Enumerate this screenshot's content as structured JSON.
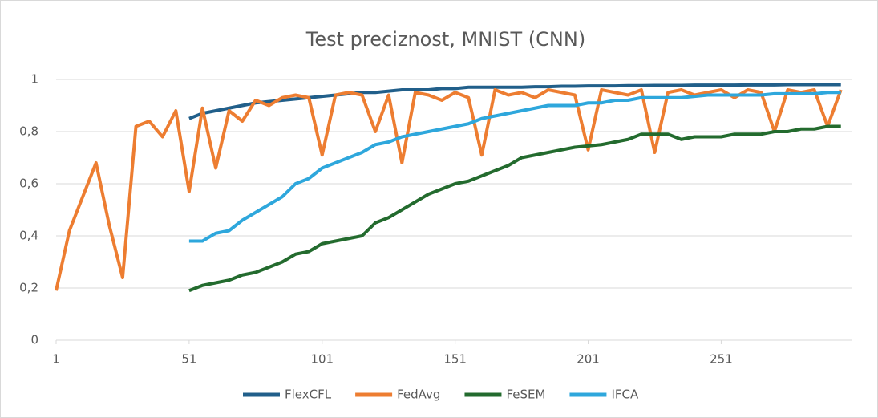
{
  "chart_data": {
    "type": "line",
    "title": "Test preciznost, MNIST (CNN)",
    "x": [
      1,
      6,
      11,
      16,
      21,
      26,
      31,
      36,
      41,
      46,
      51,
      56,
      61,
      66,
      71,
      76,
      81,
      86,
      91,
      96,
      101,
      106,
      111,
      116,
      121,
      126,
      131,
      136,
      141,
      146,
      151,
      156,
      161,
      166,
      171,
      176,
      181,
      186,
      191,
      196,
      201,
      206,
      211,
      216,
      221,
      226,
      231,
      236,
      241,
      246,
      251,
      256,
      261,
      266,
      271,
      276,
      281,
      286,
      291,
      296
    ],
    "series": [
      {
        "name": "FlexCFL",
        "color": "#215f8a",
        "values": [
          null,
          null,
          null,
          null,
          null,
          null,
          null,
          null,
          null,
          null,
          0.85,
          0.87,
          0.88,
          0.89,
          0.9,
          0.91,
          0.915,
          0.92,
          0.925,
          0.93,
          0.935,
          0.94,
          0.945,
          0.95,
          0.95,
          0.955,
          0.96,
          0.96,
          0.96,
          0.965,
          0.965,
          0.97,
          0.97,
          0.97,
          0.97,
          0.97,
          0.972,
          0.972,
          0.974,
          0.974,
          0.975,
          0.975,
          0.975,
          0.976,
          0.976,
          0.977,
          0.977,
          0.977,
          0.978,
          0.978,
          0.978,
          0.978,
          0.979,
          0.979,
          0.979,
          0.98,
          0.98,
          0.98,
          0.98,
          0.98
        ]
      },
      {
        "name": "FedAvg",
        "color": "#ed7d31",
        "values": [
          0.19,
          0.42,
          0.55,
          0.68,
          0.44,
          0.24,
          0.82,
          0.84,
          0.78,
          0.88,
          0.57,
          0.89,
          0.66,
          0.88,
          0.84,
          0.92,
          0.9,
          0.93,
          0.94,
          0.93,
          0.71,
          0.94,
          0.95,
          0.94,
          0.8,
          0.94,
          0.68,
          0.95,
          0.94,
          0.92,
          0.95,
          0.93,
          0.71,
          0.96,
          0.94,
          0.95,
          0.93,
          0.96,
          0.95,
          0.94,
          0.73,
          0.96,
          0.95,
          0.94,
          0.96,
          0.72,
          0.95,
          0.96,
          0.94,
          0.95,
          0.96,
          0.93,
          0.96,
          0.95,
          0.8,
          0.96,
          0.95,
          0.96,
          0.82,
          0.96
        ]
      },
      {
        "name": "FeSEM",
        "color": "#236b2e",
        "values": [
          null,
          null,
          null,
          null,
          null,
          null,
          null,
          null,
          null,
          null,
          0.19,
          0.21,
          0.22,
          0.23,
          0.25,
          0.26,
          0.28,
          0.3,
          0.33,
          0.34,
          0.37,
          0.38,
          0.39,
          0.4,
          0.45,
          0.47,
          0.5,
          0.53,
          0.56,
          0.58,
          0.6,
          0.61,
          0.63,
          0.65,
          0.67,
          0.7,
          0.71,
          0.72,
          0.73,
          0.74,
          0.745,
          0.75,
          0.76,
          0.77,
          0.79,
          0.79,
          0.79,
          0.77,
          0.78,
          0.78,
          0.78,
          0.79,
          0.79,
          0.79,
          0.8,
          0.8,
          0.81,
          0.81,
          0.82,
          0.82
        ]
      },
      {
        "name": "IFCA",
        "color": "#2ea7dc",
        "values": [
          null,
          null,
          null,
          null,
          null,
          null,
          null,
          null,
          null,
          null,
          0.38,
          0.38,
          0.41,
          0.42,
          0.46,
          0.49,
          0.52,
          0.55,
          0.6,
          0.62,
          0.66,
          0.68,
          0.7,
          0.72,
          0.75,
          0.76,
          0.78,
          0.79,
          0.8,
          0.81,
          0.82,
          0.83,
          0.85,
          0.86,
          0.87,
          0.88,
          0.89,
          0.9,
          0.9,
          0.9,
          0.91,
          0.91,
          0.92,
          0.92,
          0.93,
          0.93,
          0.93,
          0.93,
          0.935,
          0.94,
          0.94,
          0.94,
          0.94,
          0.94,
          0.945,
          0.945,
          0.945,
          0.945,
          0.95,
          0.95
        ]
      }
    ],
    "xlim": [
      1,
      300
    ],
    "xticks": [
      1,
      51,
      101,
      151,
      201,
      251
    ],
    "ylim": [
      0,
      1
    ],
    "yticks": [
      0,
      {
        "value": 0.2,
        "label": "0,2"
      },
      {
        "value": 0.4,
        "label": "0,4"
      },
      {
        "value": 0.6,
        "label": "0,6"
      },
      {
        "value": 0.8,
        "label": "0,8"
      },
      1
    ],
    "grid": true,
    "legend": "bottom"
  }
}
